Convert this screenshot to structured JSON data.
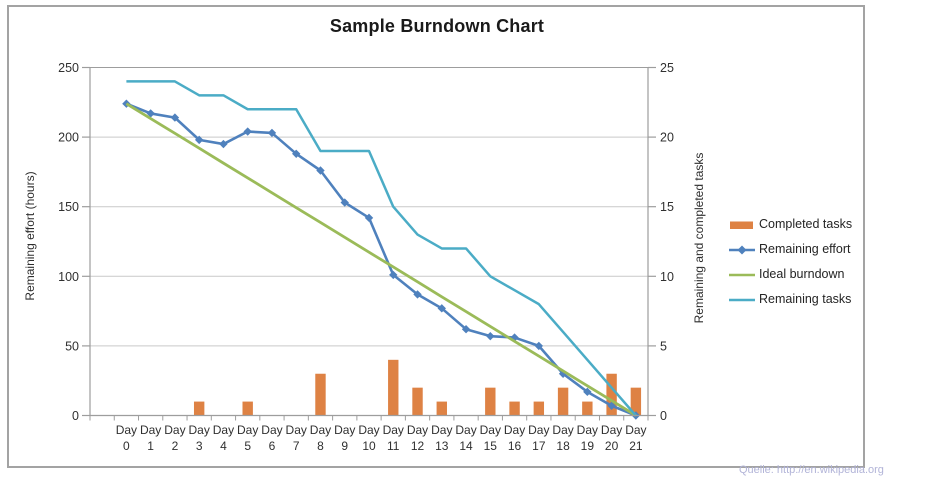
{
  "title": "Sample Burndown Chart",
  "footer": {
    "source_text": "Quelle: http://en.wikipedia.org"
  },
  "colors": {
    "bar_orange": "#de8244",
    "effort_blue": "#4f81bd",
    "ideal_green": "#9bbb59",
    "tasks_teal": "#4bacc6",
    "gridline": "#c9c9c9",
    "axis_line": "#9d9d9d",
    "text": "#303030",
    "source_text_color": "#b2b4d8"
  },
  "chart_data": {
    "type": "combo",
    "categories": [
      "Day 0",
      "Day 1",
      "Day 2",
      "Day 3",
      "Day 4",
      "Day 5",
      "Day 6",
      "Day 7",
      "Day 8",
      "Day 9",
      "Day 10",
      "Day 11",
      "Day 12",
      "Day 13",
      "Day 14",
      "Day 15",
      "Day 16",
      "Day 17",
      "Day 18",
      "Day 19",
      "Day 20",
      "Day 21"
    ],
    "series": [
      {
        "name": "Completed tasks",
        "type": "bar",
        "axis": "right",
        "color": "#de8244",
        "marker": "none",
        "values": [
          0,
          0,
          0,
          1,
          0,
          1,
          0,
          0,
          3,
          0,
          0,
          4,
          2,
          1,
          0,
          2,
          1,
          1,
          2,
          1,
          3,
          2
        ]
      },
      {
        "name": "Remaining effort",
        "type": "line",
        "axis": "left",
        "color": "#4f81bd",
        "marker": "diamond",
        "values": [
          224,
          217,
          214,
          198,
          195,
          204,
          203,
          188,
          176,
          153,
          142,
          101,
          87,
          77,
          62,
          57,
          56,
          50,
          30,
          17,
          7,
          0
        ]
      },
      {
        "name": "Ideal burndown",
        "type": "line",
        "axis": "left",
        "color": "#9bbb59",
        "marker": "none",
        "values": [
          224,
          213.3,
          202.7,
          192,
          181.3,
          170.7,
          160,
          149.3,
          138.7,
          128,
          117.3,
          106.7,
          96,
          85.3,
          74.7,
          64,
          53.3,
          42.7,
          32,
          21.3,
          10.7,
          0
        ]
      },
      {
        "name": "Remaining tasks",
        "type": "line",
        "axis": "right",
        "color": "#4bacc6",
        "marker": "none",
        "values": [
          24,
          24,
          24,
          23,
          23,
          22,
          22,
          22,
          19,
          19,
          19,
          15,
          13,
          12,
          12,
          10,
          9,
          8,
          6,
          4,
          2,
          0
        ]
      }
    ],
    "left_axis": {
      "title": "Remaining effort (hours)",
      "ticks": [
        0,
        50,
        100,
        150,
        200,
        250
      ],
      "range": [
        0,
        250
      ]
    },
    "right_axis": {
      "title": "Remaining and completed tasks",
      "ticks": [
        0,
        5,
        10,
        15,
        20,
        25
      ],
      "range": [
        0,
        25
      ]
    },
    "legend": {
      "position": "right"
    },
    "grid": true
  }
}
